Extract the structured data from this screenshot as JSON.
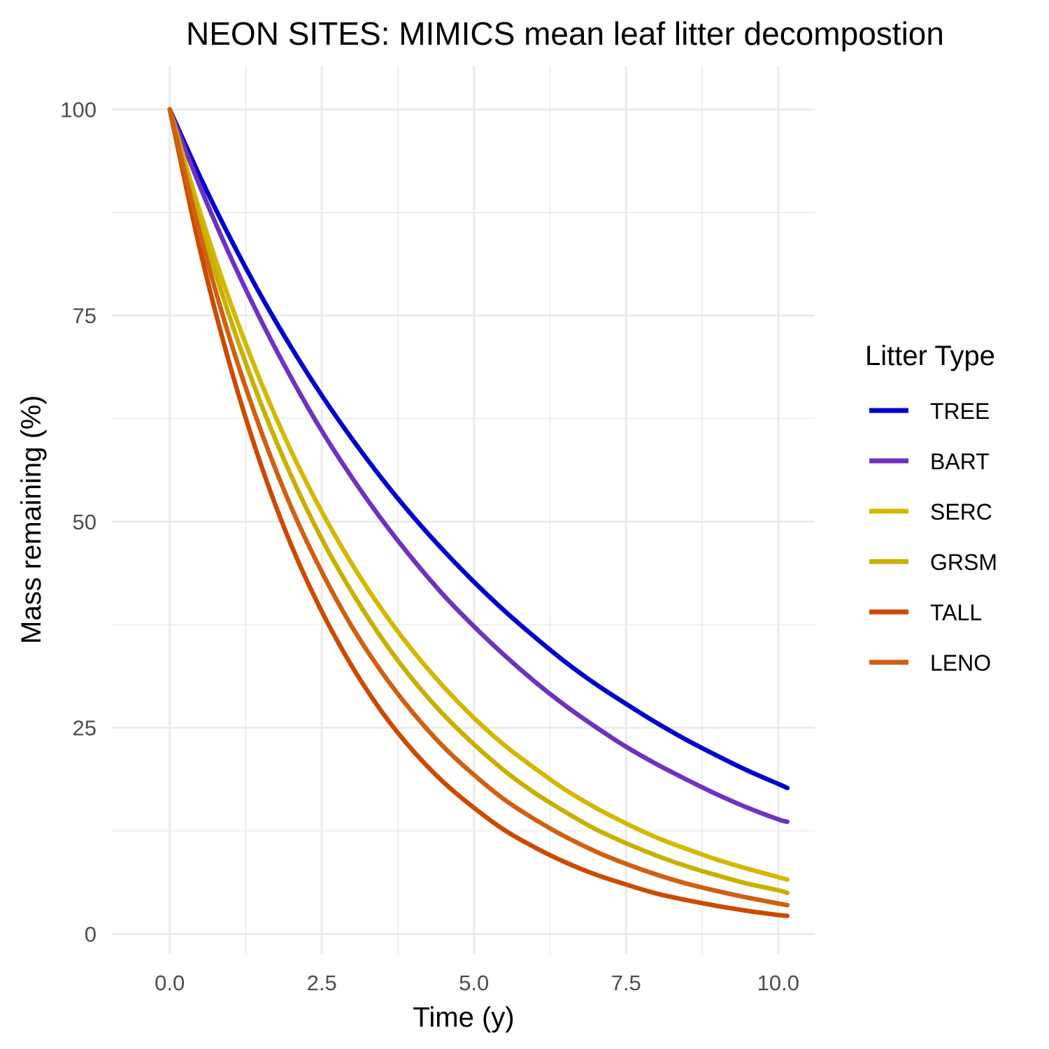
{
  "chart_data": {
    "type": "line",
    "title": "NEON SITES: MIMICS mean leaf litter decompostion",
    "xlabel": "Time (y)",
    "ylabel": "Mass remaining (%)",
    "xlim": [
      -0.95,
      10.6
    ],
    "ylim": [
      -2.5,
      105.2
    ],
    "x_ticks": [
      0,
      2.5,
      5,
      7.5,
      10
    ],
    "x_tick_labels": [
      "0.0",
      "2.5",
      "5.0",
      "7.5",
      "10.0"
    ],
    "y_ticks": [
      0,
      25,
      50,
      75,
      100
    ],
    "y_tick_labels": [
      "0",
      "25",
      "50",
      "75",
      "100"
    ],
    "grid": true,
    "legend": {
      "title": "Litter Type",
      "placement": "right"
    },
    "x": [
      0,
      0.5,
      1,
      1.5,
      2,
      2.5,
      3,
      3.5,
      4,
      4.5,
      5,
      5.5,
      6,
      6.5,
      7,
      7.5,
      8,
      8.5,
      9,
      9.5,
      10,
      10.15
    ],
    "series": [
      {
        "name": "TREE",
        "color": "#0000CD",
        "values": [
          100,
          91.8,
          84.3,
          77.4,
          71.1,
          65.3,
          60.0,
          55.1,
          50.6,
          46.5,
          42.7,
          39.2,
          36.0,
          33.0,
          30.3,
          27.9,
          25.6,
          23.5,
          21.6,
          19.8,
          18.2,
          17.7
        ]
      },
      {
        "name": "BART",
        "color": "#7030C0",
        "values": [
          100,
          90.6,
          82.1,
          74.4,
          67.4,
          61.0,
          55.3,
          50.1,
          45.4,
          41.1,
          37.3,
          33.8,
          30.6,
          27.7,
          25.1,
          22.7,
          20.6,
          18.7,
          16.9,
          15.3,
          13.9,
          13.6
        ]
      },
      {
        "name": "SERC",
        "color": "#D4B800",
        "values": [
          100,
          87.5,
          76.5,
          66.9,
          58.5,
          51.2,
          44.8,
          39.2,
          34.3,
          30.0,
          26.2,
          22.9,
          20.1,
          17.5,
          15.3,
          13.4,
          11.7,
          10.3,
          9.0,
          7.9,
          6.9,
          6.6
        ]
      },
      {
        "name": "GRSM",
        "color": "#C8B000",
        "values": [
          100,
          86.3,
          74.5,
          64.3,
          55.5,
          47.9,
          41.4,
          35.7,
          30.8,
          26.6,
          23.0,
          19.8,
          17.1,
          14.8,
          12.7,
          11.0,
          9.5,
          8.2,
          7.1,
          6.1,
          5.3,
          5.0
        ]
      },
      {
        "name": "TALL",
        "color": "#CC4A00",
        "values": [
          100,
          82.9,
          68.7,
          56.9,
          47.1,
          39.1,
          32.4,
          26.8,
          22.2,
          18.4,
          15.3,
          12.6,
          10.5,
          8.7,
          7.2,
          6.0,
          4.9,
          4.1,
          3.4,
          2.8,
          2.3,
          2.2
        ]
      },
      {
        "name": "LENO",
        "color": "#D06010",
        "values": [
          100,
          84.8,
          71.9,
          61.0,
          51.7,
          43.9,
          37.2,
          31.6,
          26.8,
          22.7,
          19.3,
          16.3,
          13.9,
          11.8,
          10.0,
          8.5,
          7.2,
          6.1,
          5.2,
          4.4,
          3.7,
          3.5
        ]
      }
    ]
  }
}
